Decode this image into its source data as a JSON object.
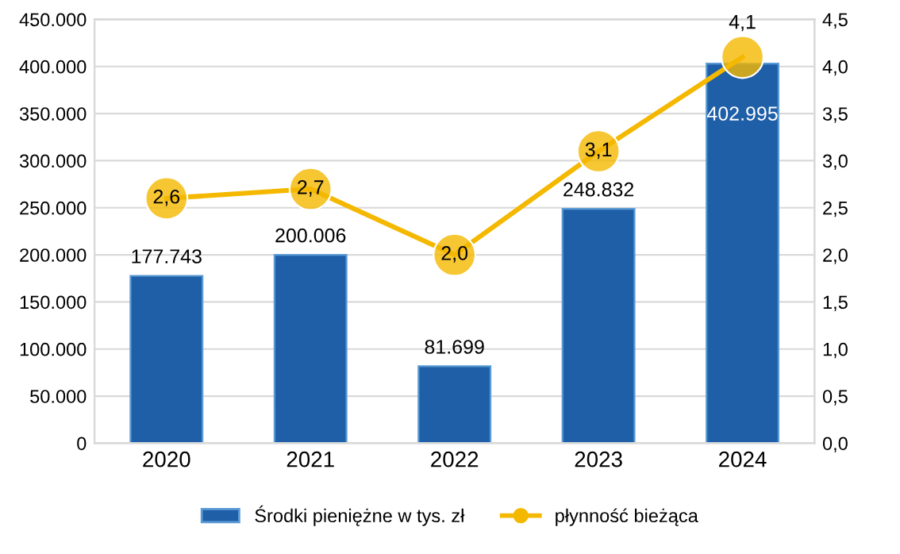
{
  "chart_data": {
    "type": "bar",
    "categories": [
      "2020",
      "2021",
      "2022",
      "2023",
      "2024"
    ],
    "series": [
      {
        "name": "Środki pieniężne w tys. zł",
        "color": "#1f5fa8",
        "values": [
          177743,
          200006,
          81699,
          248832,
          402995
        ],
        "value_labels": [
          "177.743",
          "200.006",
          "81.699",
          "248.832",
          "402.995"
        ]
      },
      {
        "name": "płynność bieżąca",
        "type": "line",
        "axis": "y2",
        "color": "#f5b800",
        "marker": "circle",
        "values": [
          2.6,
          2.7,
          2.0,
          3.1,
          4.1
        ],
        "value_labels": [
          "2,6",
          "2,7",
          "2,0",
          "3,1",
          "4,1"
        ]
      }
    ],
    "ylim": [
      0,
      450000
    ],
    "yticks": [
      {
        "value": 0,
        "label": "0"
      },
      {
        "value": 50000,
        "label": "50.000"
      },
      {
        "value": 100000,
        "label": "100.000"
      },
      {
        "value": 150000,
        "label": "150.000"
      },
      {
        "value": 200000,
        "label": "200.000"
      },
      {
        "value": 250000,
        "label": "250.000"
      },
      {
        "value": 300000,
        "label": "300.000"
      },
      {
        "value": 350000,
        "label": "350.000"
      },
      {
        "value": 400000,
        "label": "400.000"
      },
      {
        "value": 450000,
        "label": "450.000"
      }
    ],
    "y2lim": [
      0,
      4.5
    ],
    "y2ticks": [
      {
        "value": 0,
        "label": "0,0"
      },
      {
        "value": 0.5,
        "label": "0,5"
      },
      {
        "value": 1,
        "label": "1,0"
      },
      {
        "value": 1.5,
        "label": "1,5"
      },
      {
        "value": 2,
        "label": "2,0"
      },
      {
        "value": 2.5,
        "label": "2,5"
      },
      {
        "value": 3,
        "label": "3,0"
      },
      {
        "value": 3.5,
        "label": "3,5"
      },
      {
        "value": 4,
        "label": "4,0"
      },
      {
        "value": 4.5,
        "label": "4,5"
      }
    ],
    "grid": "y",
    "legend": "bottom"
  }
}
